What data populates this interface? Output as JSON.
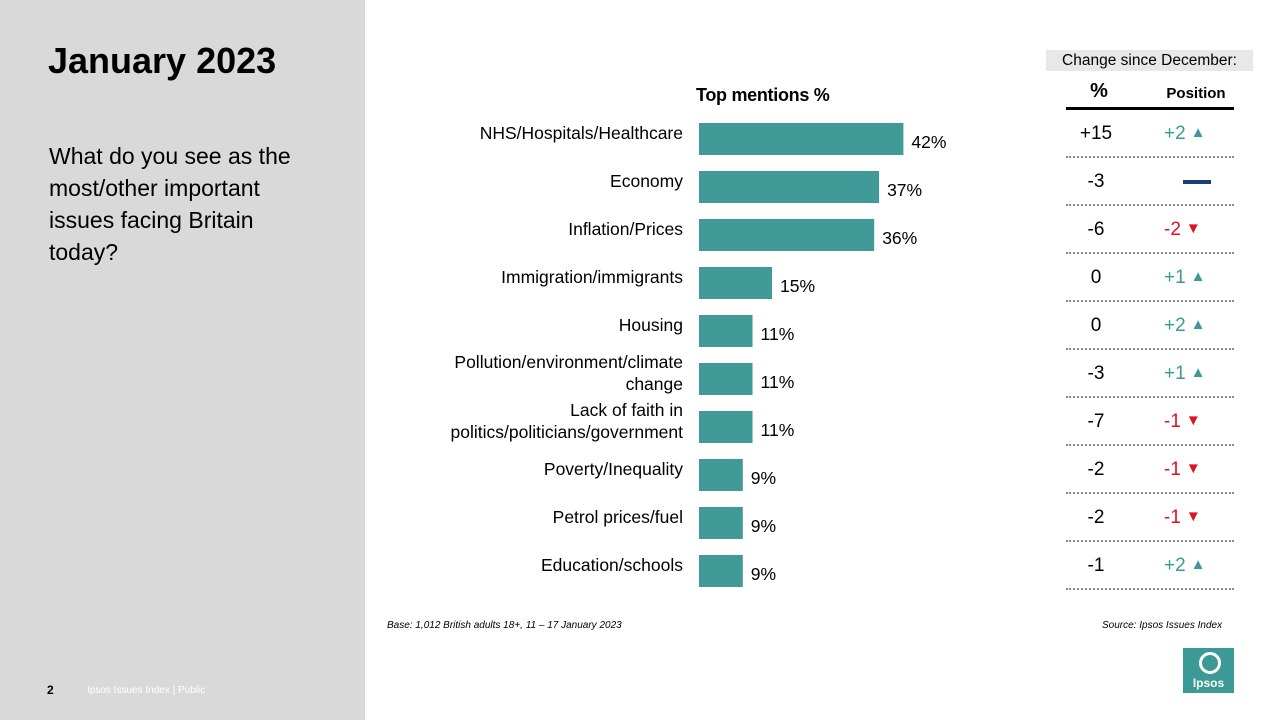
{
  "slide": {
    "title": "January 2023",
    "question": "What do you see as the most/other important issues facing Britain today?",
    "page_number": "2",
    "footer": "Ipsos Issues Index | Public",
    "base": "Base: 1,012 British adults 18+, 11 – 17 January 2023",
    "source": "Source: Ipsos Issues Index",
    "logo": "Ipsos"
  },
  "chart_data": {
    "type": "bar",
    "orientation": "horizontal",
    "title": "Top mentions %",
    "categories": [
      "NHS/Hospitals/Healthcare",
      "Economy",
      "Inflation/Prices",
      "Immigration/immigrants",
      "Housing",
      "Pollution/environment/climate change",
      "Lack of faith in politics/politicians/government",
      "Poverty/Inequality",
      "Petrol prices/fuel",
      "Education/schools"
    ],
    "category_lines": [
      [
        "NHS/Hospitals/Healthcare"
      ],
      [
        "Economy"
      ],
      [
        "Inflation/Prices"
      ],
      [
        "Immigration/immigrants"
      ],
      [
        "Housing"
      ],
      [
        "Pollution/environment/climate",
        "change"
      ],
      [
        "Lack of faith in",
        "politics/politicians/government"
      ],
      [
        "Poverty/Inequality"
      ],
      [
        "Petrol prices/fuel"
      ],
      [
        "Education/schools"
      ]
    ],
    "values": [
      42,
      37,
      36,
      15,
      11,
      11,
      11,
      9,
      9,
      9
    ],
    "value_labels": [
      "42%",
      "37%",
      "36%",
      "15%",
      "11%",
      "11%",
      "11%",
      "9%",
      "9%",
      "9%"
    ],
    "bar_color": "#409a97",
    "xlim": [
      0,
      45
    ],
    "grid": false
  },
  "change_table": {
    "header": "Change since December:",
    "col_pct": "%",
    "col_position": "Position",
    "up_color": "#3c9a96",
    "down_color": "#e3101e",
    "same_color": "#1f3b78",
    "rows": [
      {
        "pct": "+15",
        "position": "+2",
        "direction": "up"
      },
      {
        "pct": "-3",
        "position": "",
        "direction": "same"
      },
      {
        "pct": "-6",
        "position": "-2",
        "direction": "down"
      },
      {
        "pct": "0",
        "position": "+1",
        "direction": "up"
      },
      {
        "pct": "0",
        "position": "+2",
        "direction": "up"
      },
      {
        "pct": "-3",
        "position": "+1",
        "direction": "up"
      },
      {
        "pct": "-7",
        "position": "-1",
        "direction": "down"
      },
      {
        "pct": "-2",
        "position": "-1",
        "direction": "down"
      },
      {
        "pct": "-2",
        "position": "-1",
        "direction": "down"
      },
      {
        "pct": "-1",
        "position": "+2",
        "direction": "up"
      }
    ]
  }
}
